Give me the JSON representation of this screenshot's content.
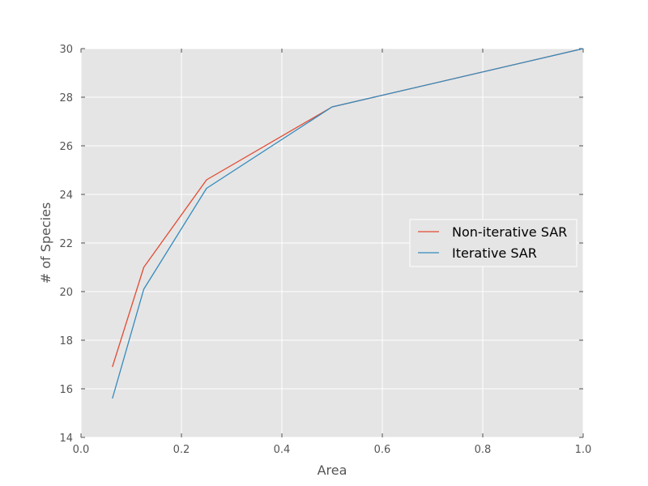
{
  "chart_data": {
    "type": "line",
    "title": "",
    "xlabel": "Area",
    "ylabel": "# of Species",
    "xlim": [
      0.0,
      1.0
    ],
    "ylim": [
      14,
      30
    ],
    "xticks": [
      "0.0",
      "0.2",
      "0.4",
      "0.6",
      "0.8",
      "1.0"
    ],
    "yticks": [
      "14",
      "16",
      "18",
      "20",
      "22",
      "24",
      "26",
      "28",
      "30"
    ],
    "grid": true,
    "legend_position": "center-right",
    "series": [
      {
        "name": "Non-iterative SAR",
        "color": "#e24a33",
        "x": [
          0.0625,
          0.125,
          0.25,
          0.5,
          1.0
        ],
        "y": [
          16.9,
          21.0,
          24.6,
          27.6,
          30.0
        ]
      },
      {
        "name": "Iterative SAR",
        "color": "#348abd",
        "x": [
          0.0625,
          0.125,
          0.25,
          0.5,
          1.0
        ],
        "y": [
          15.6,
          20.1,
          24.25,
          27.6,
          30.0
        ]
      }
    ]
  }
}
